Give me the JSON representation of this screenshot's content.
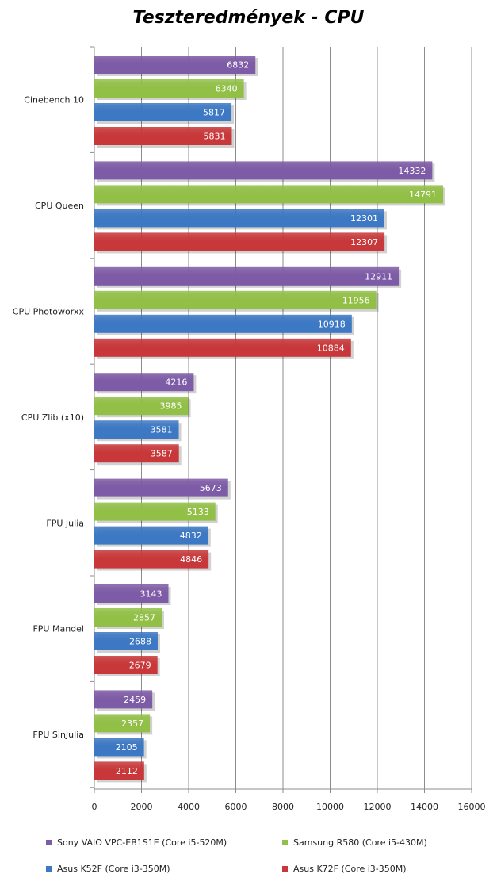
{
  "chart_data": {
    "type": "bar",
    "orientation": "horizontal",
    "title": "Teszteredmények - CPU",
    "categories": [
      "Cinebench 10",
      "CPU Queen",
      "CPU Photoworxx",
      "CPU Zlib (x10)",
      "FPU Julia",
      "FPU Mandel",
      "FPU SinJulia"
    ],
    "series": [
      {
        "name": "Sony VAIO  VPC-EB1S1E (Core i5-520M)",
        "color": "#7e5ba6",
        "values": [
          6832,
          14332,
          12911,
          4216,
          5673,
          3143,
          2459
        ]
      },
      {
        "name": "Samsung R580 (Core i5-430M)",
        "color": "#92c047",
        "values": [
          6340,
          14791,
          11956,
          3985,
          5133,
          2857,
          2357
        ]
      },
      {
        "name": "Asus K52F (Core i3-350M)",
        "color": "#3c78c3",
        "values": [
          5817,
          12301,
          10918,
          3581,
          4832,
          2688,
          2105
        ]
      },
      {
        "name": "Asus K72F (Core i3-350M)",
        "color": "#c8383a",
        "values": [
          5831,
          12307,
          10884,
          3587,
          4846,
          2679,
          2112
        ]
      }
    ],
    "xlim": [
      0,
      16000
    ],
    "xticks": [
      0,
      2000,
      4000,
      6000,
      8000,
      10000,
      12000,
      14000,
      16000
    ],
    "grid": true,
    "legend_position": "bottom"
  }
}
